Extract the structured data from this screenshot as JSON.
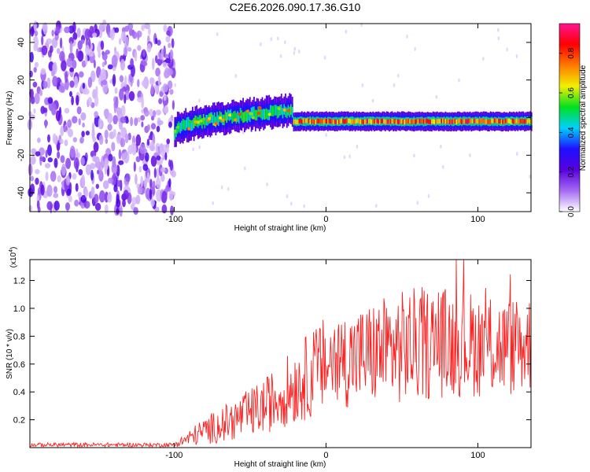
{
  "chart_data": [
    {
      "type": "heatmap",
      "title": "C2E6.2026.090.17.36.G10",
      "xlabel": "Height of straight line (km)",
      "ylabel": "Frequency (Hz)",
      "xlim": [
        -195,
        135
      ],
      "ylim": [
        -50,
        50
      ],
      "x_ticks": [
        -100,
        0,
        100
      ],
      "x_tick_labels": [
        "-100",
        "0",
        "100"
      ],
      "y_ticks": [
        -40,
        -20,
        0,
        20,
        40
      ],
      "y_tick_labels": [
        "-40",
        "-20",
        "0",
        "20",
        "40"
      ],
      "colorbar": {
        "label": "Normalized spectral amplitude",
        "range": [
          0,
          0.95
        ],
        "ticks": [
          0,
          0.2,
          0.4,
          0.6,
          0.8
        ],
        "tick_labels": [
          "0.0",
          "0.2",
          "0.4",
          "0.6",
          "0.8"
        ],
        "colormap": [
          "#ffffff",
          "#a56bf2",
          "#5a00e0",
          "#1e10ff",
          "#00d0ff",
          "#00e020",
          "#f2f000",
          "#ff7a00",
          "#ff0000",
          "#ff1493"
        ]
      },
      "regions": [
        {
          "name": "noise",
          "x_range": [
            -195,
            -100
          ],
          "freq_range": [
            -50,
            50
          ],
          "amplitude": "low, scattered"
        },
        {
          "name": "signal-transition",
          "x_range": [
            -100,
            -22
          ],
          "center_freq_start": -8,
          "center_freq_end": 4,
          "amplitude": "medium"
        },
        {
          "name": "signal-steady",
          "x_range": [
            -22,
            135
          ],
          "center_freq": -2,
          "amplitude": "high"
        }
      ]
    },
    {
      "type": "line",
      "title": "",
      "xlabel": "Height of straight line (km)",
      "ylabel": "SNR (10 * v/v)",
      "y_scale_label": "(x10^4)",
      "y_scale_base": "(x10",
      "y_scale_exp": "4",
      "y_scale_close": ")",
      "xlim": [
        -195,
        135
      ],
      "ylim": [
        0,
        1.35
      ],
      "x_ticks": [
        -100,
        0,
        100
      ],
      "x_tick_labels": [
        "-100",
        "0",
        "100"
      ],
      "y_ticks": [
        0.2,
        0.4,
        0.6,
        0.8,
        1.0,
        1.2
      ],
      "y_tick_labels": [
        "0.2",
        "0.4",
        "0.6",
        "0.8",
        "1.0",
        "1.2"
      ],
      "series": [
        {
          "name": "SNR",
          "color": "#ff2020",
          "envelope_x": [
            -195,
            -100,
            -92,
            -80,
            -60,
            -40,
            -20,
            0,
            20,
            40,
            60,
            80,
            100,
            120,
            135
          ],
          "envelope_mean": [
            0.02,
            0.02,
            0.06,
            0.12,
            0.2,
            0.3,
            0.45,
            0.6,
            0.65,
            0.7,
            0.74,
            0.76,
            0.74,
            0.72,
            0.75
          ],
          "envelope_amplitude": [
            0.015,
            0.015,
            0.05,
            0.1,
            0.15,
            0.2,
            0.28,
            0.35,
            0.35,
            0.4,
            0.42,
            0.4,
            0.38,
            0.36,
            0.35
          ],
          "y_max": 1.35
        }
      ]
    }
  ]
}
